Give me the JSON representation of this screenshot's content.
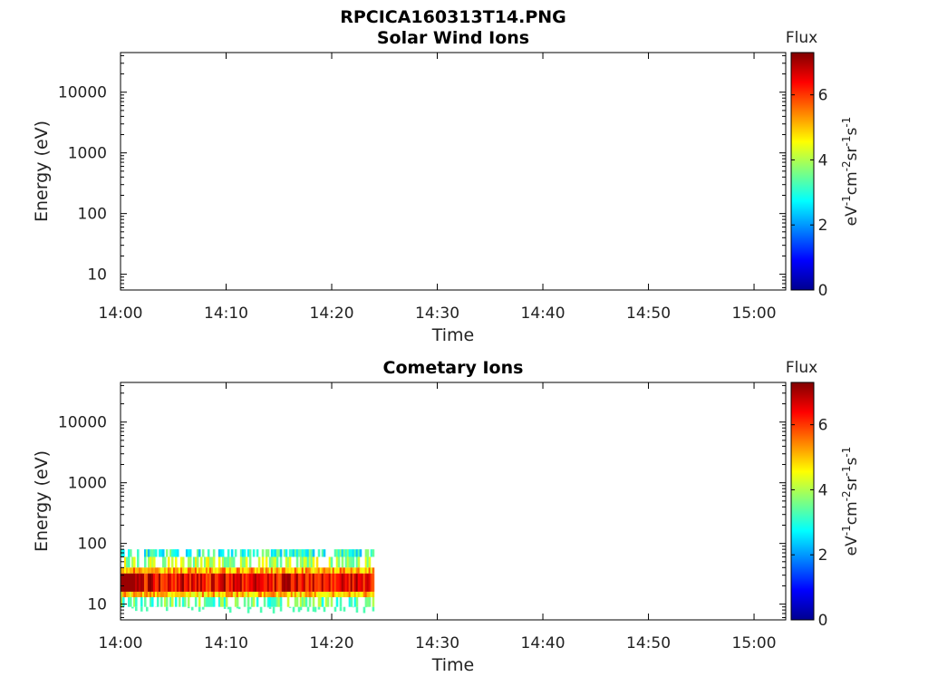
{
  "figure": {
    "title": "RPCICA160313T14.PNG"
  },
  "chart_data": [
    {
      "type": "heatmap",
      "title": "Solar Wind Ions",
      "xlabel": "Time",
      "ylabel": "Energy (eV)",
      "yscale": "log",
      "ylim": [
        5.5,
        45000
      ],
      "xlim": [
        "14:00",
        "15:03"
      ],
      "xticks": [
        "14:00",
        "14:10",
        "14:20",
        "14:30",
        "14:40",
        "14:50",
        "15:00"
      ],
      "yticks": [
        "10",
        "100",
        "1000",
        "10000"
      ],
      "colorbar": {
        "label": "Flux",
        "units": "eV-1cm-2sr-1s-1",
        "ticks": [
          "0",
          "2",
          "4",
          "6"
        ],
        "range": [
          0,
          7.3
        ],
        "colormap": "jet"
      },
      "data": []
    },
    {
      "type": "heatmap",
      "title": "Cometary Ions",
      "xlabel": "Time",
      "ylabel": "Energy (eV)",
      "yscale": "log",
      "ylim": [
        5.5,
        45000
      ],
      "xlim": [
        "14:00",
        "15:03"
      ],
      "xticks": [
        "14:00",
        "14:10",
        "14:20",
        "14:30",
        "14:40",
        "14:50",
        "15:00"
      ],
      "yticks": [
        "10",
        "100",
        "1000",
        "10000"
      ],
      "colorbar": {
        "label": "Flux",
        "units": "eV-1cm-2sr-1s-1",
        "ticks": [
          "0",
          "2",
          "4",
          "6"
        ],
        "range": [
          0,
          7.3
        ],
        "colormap": "jet"
      },
      "data": {
        "time_range": [
          "14:00",
          "14:24"
        ],
        "energy_range_eV": [
          7,
          80
        ],
        "peak_energy_range_eV": [
          15,
          35
        ],
        "peak_flux": 6.8,
        "description_levels": [
          {
            "energy_eV": [
              60,
              80
            ],
            "flux": 3.0
          },
          {
            "energy_eV": [
              40,
              60
            ],
            "flux": 4.0
          },
          {
            "energy_eV": [
              32,
              40
            ],
            "flux": 5.2
          },
          {
            "energy_eV": [
              16,
              32
            ],
            "flux": 6.5
          },
          {
            "energy_eV": [
              13,
              16
            ],
            "flux": 5.0
          },
          {
            "energy_eV": [
              9,
              13
            ],
            "flux": 3.5
          }
        ]
      }
    }
  ]
}
